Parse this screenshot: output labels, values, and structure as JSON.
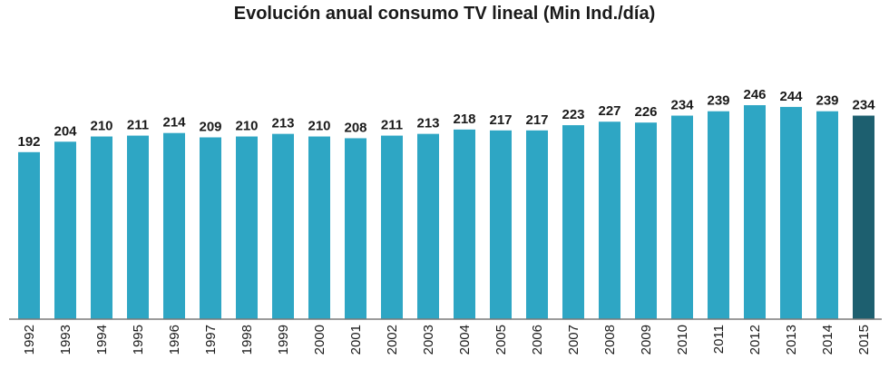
{
  "chart_data": {
    "type": "bar",
    "title": "Evolución anual consumo TV lineal (Min Ind./día)",
    "xlabel": "",
    "ylabel": "",
    "categories": [
      "1992",
      "1993",
      "1994",
      "1995",
      "1996",
      "1997",
      "1998",
      "1999",
      "2000",
      "2001",
      "2002",
      "2003",
      "2004",
      "2005",
      "2006",
      "2007",
      "2008",
      "2009",
      "2010",
      "2011",
      "2012",
      "2013",
      "2014",
      "2015"
    ],
    "values": [
      192,
      204,
      210,
      211,
      214,
      209,
      210,
      213,
      210,
      208,
      211,
      213,
      218,
      217,
      217,
      223,
      227,
      226,
      234,
      239,
      246,
      244,
      239,
      234
    ],
    "ylim": [
      0,
      246
    ],
    "grid": false,
    "legend": "none",
    "colors": {
      "bar": "#2ea6c4",
      "highlight": "#1d5f6f",
      "axis": "#7a7a7a"
    },
    "highlight_category": "2015"
  }
}
